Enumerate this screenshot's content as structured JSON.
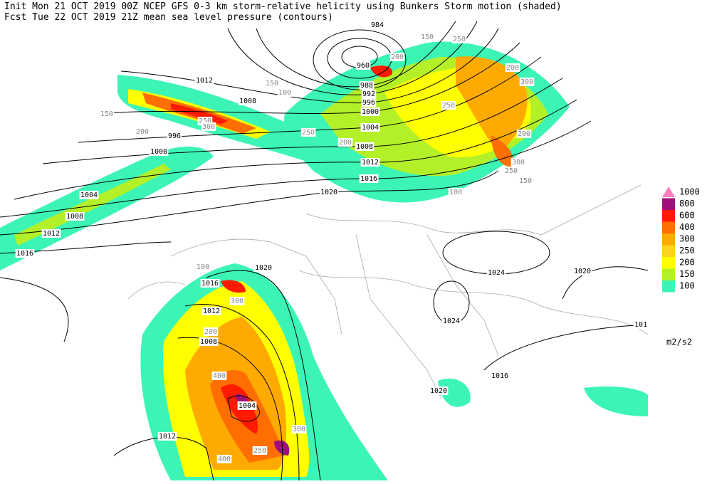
{
  "header": {
    "line1": "Init  Mon 21 OCT 2019 00Z  NCEP GFS 0-3 km storm-relative helicity using Bunkers Storm motion (shaded)",
    "line2": "Fcst Tue 22 OCT 2019 21Z  mean sea level pressure (contours)"
  },
  "legend": {
    "items": [
      {
        "label": "1000",
        "color": "#ff7fc0"
      },
      {
        "label": "800",
        "color": "#a0107a"
      },
      {
        "label": "600",
        "color": "#ff1a00"
      },
      {
        "label": "400",
        "color": "#ff6e00"
      },
      {
        "label": "300",
        "color": "#ffaa00"
      },
      {
        "label": "250",
        "color": "#ffd21e"
      },
      {
        "label": "200",
        "color": "#ffff00"
      },
      {
        "label": "150",
        "color": "#b4f028"
      },
      {
        "label": "100",
        "color": "#3cf5b4"
      }
    ],
    "unit": "m2/s2"
  },
  "isobar_labels": [
    "984",
    "960",
    "988",
    "992",
    "996",
    "1000",
    "1004",
    "1008",
    "1012",
    "1016",
    "1020",
    "1012",
    "1008",
    "996",
    "1000",
    "1004",
    "1008",
    "1012",
    "1016",
    "1020",
    "1016",
    "1012",
    "1008",
    "1004",
    "1012",
    "1024",
    "1024",
    "1020",
    "1016",
    "1020",
    "101"
  ],
  "shading_labels": [
    "200",
    "150",
    "250",
    "200",
    "300",
    "250",
    "150",
    "100",
    "250",
    "200",
    "150",
    "300",
    "250",
    "200",
    "300",
    "200",
    "250",
    "150",
    "400",
    "300",
    "200",
    "100",
    "400",
    "300",
    "250",
    "100"
  ]
}
